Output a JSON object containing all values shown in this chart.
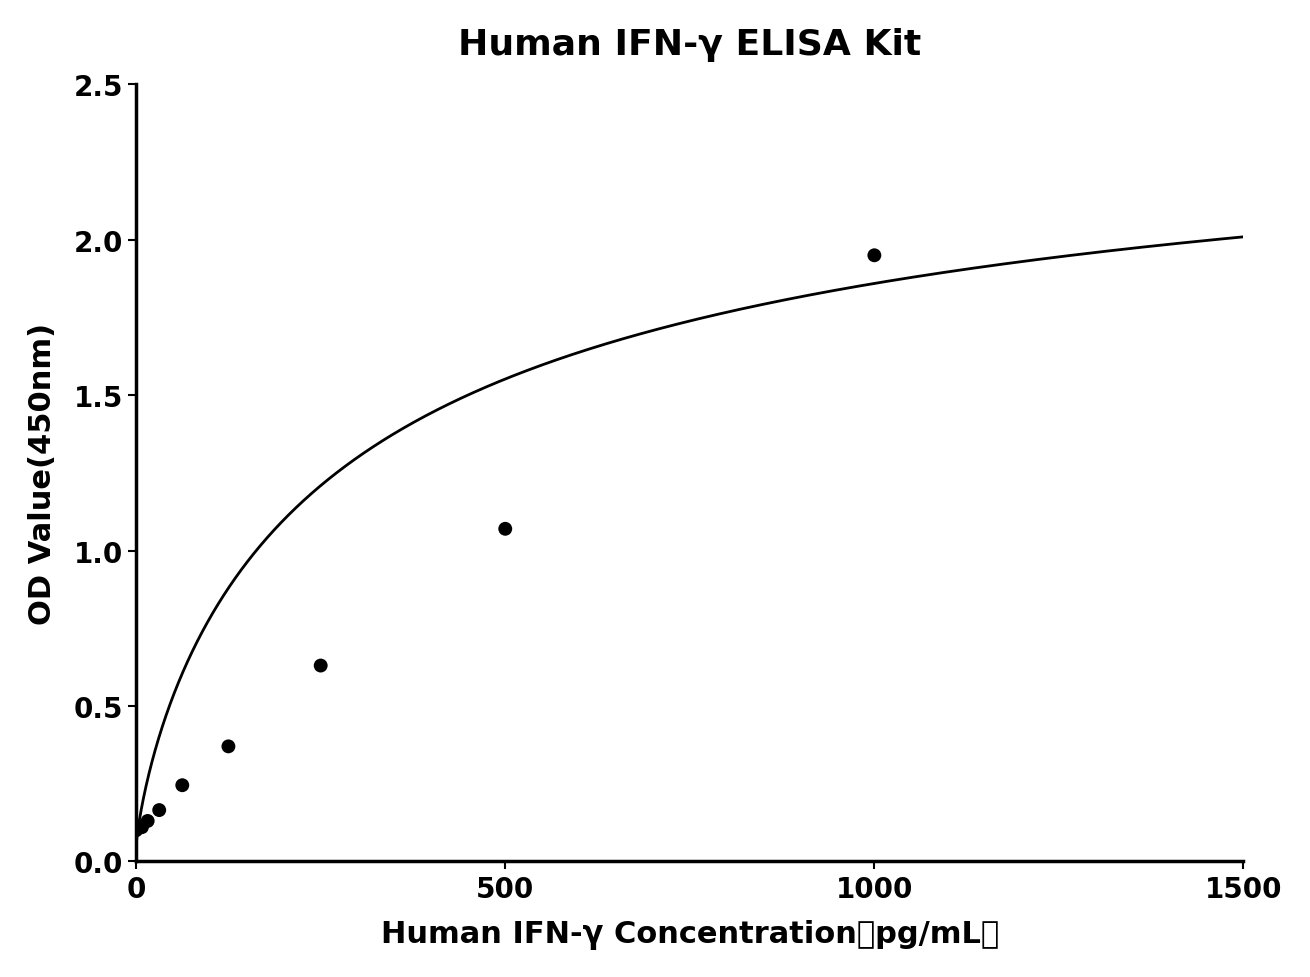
{
  "title": "Human IFN-γ ELISA Kit",
  "xlabel": "Human IFN-γ Concentration（pg/mL）",
  "ylabel": "OD Value(450nm)",
  "x_data": [
    0,
    7.8,
    15.6,
    31.25,
    62.5,
    125,
    250,
    500,
    1000
  ],
  "y_data": [
    0.1,
    0.11,
    0.13,
    0.165,
    0.245,
    0.37,
    0.63,
    1.07,
    1.95
  ],
  "xlim": [
    0,
    1500
  ],
  "ylim": [
    0,
    2.5
  ],
  "xticks": [
    0,
    500,
    1000,
    1500
  ],
  "yticks": [
    0.0,
    0.5,
    1.0,
    1.5,
    2.0,
    2.5
  ],
  "marker_color": "#000000",
  "line_color": "#000000",
  "marker_size": 10,
  "title_fontsize": 26,
  "label_fontsize": 22,
  "tick_fontsize": 20,
  "background_color": "#ffffff",
  "spine_linewidth": 2.5
}
